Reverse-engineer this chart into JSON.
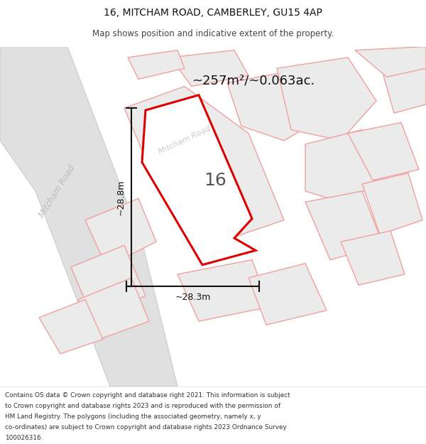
{
  "title_line1": "16, MITCHAM ROAD, CAMBERLEY, GU15 4AP",
  "title_line2": "Map shows position and indicative extent of the property.",
  "area_text": "~257m²/~0.063ac.",
  "number_label": "16",
  "dim_width": "~28.3m",
  "dim_height": "~28.8m",
  "road_label": "Mitcham Road",
  "road_label2": "Mitcham Road",
  "footer_lines": [
    "Contains OS data © Crown copyright and database right 2021. This information is subject",
    "to Crown copyright and database rights 2023 and is reproduced with the permission of",
    "HM Land Registry. The polygons (including the associated geometry, namely x, y",
    "co-ordinates) are subject to Crown copyright and database rights 2023 Ordnance Survey",
    "100026316."
  ],
  "bg_color": "#ffffff",
  "map_bg": "#f5f5f5",
  "road_fill": "#e0e0e0",
  "road_edge": "#cccccc",
  "nearby_fill": "#ebebeb",
  "nearby_edge": "#f0a0a0",
  "main_edge": "#dd0000",
  "main_fill": "#ffffff",
  "dim_color": "#111111",
  "label16_color": "#555555",
  "area_color": "#111111",
  "road_text_color": "#bbbbbb",
  "title_color1": "#111111",
  "title_color2": "#444444",
  "footer_color": "#333333"
}
